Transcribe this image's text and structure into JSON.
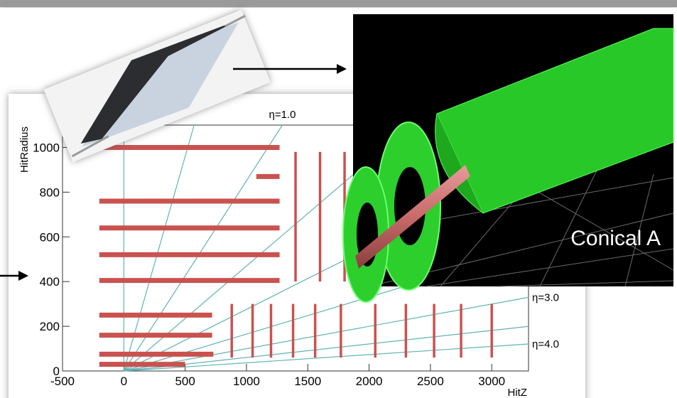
{
  "chart_data": {
    "type": "hits",
    "xlabel": "HitZ",
    "ylabel": "HitRadius",
    "xlim": [
      -500,
      3300
    ],
    "ylim": [
      0,
      1100
    ],
    "xticks": [
      -500,
      0,
      500,
      1000,
      1500,
      2000,
      2500,
      3000
    ],
    "yticks": [
      0,
      200,
      400,
      600,
      800,
      1000
    ],
    "color": "#c9524f",
    "eta_color": "#5fb3b3",
    "barrel_layers": [
      {
        "r": 1000,
        "z": [
          -200,
          1270
        ]
      },
      {
        "r": 870,
        "z": [
          1080,
          1270
        ]
      },
      {
        "r": 760,
        "z": [
          -200,
          1270
        ]
      },
      {
        "r": 640,
        "z": [
          -200,
          1270
        ]
      },
      {
        "r": 520,
        "z": [
          -200,
          1270
        ]
      },
      {
        "r": 405,
        "z": [
          -200,
          1270
        ]
      },
      {
        "r": 250,
        "z": [
          -200,
          720
        ]
      },
      {
        "r": 160,
        "z": [
          -200,
          720
        ]
      },
      {
        "r": 75,
        "z": [
          -200,
          730
        ]
      },
      {
        "r": 30,
        "z": [
          -200,
          500
        ]
      }
    ],
    "endcap_disks": [
      {
        "z": 1400,
        "r": [
          400,
          980
        ]
      },
      {
        "z": 1600,
        "r": [
          400,
          980
        ]
      },
      {
        "z": 1800,
        "r": [
          400,
          980
        ]
      },
      {
        "z": 880,
        "r": [
          60,
          300
        ]
      },
      {
        "z": 1050,
        "r": [
          60,
          300
        ]
      },
      {
        "z": 1200,
        "r": [
          60,
          300
        ]
      },
      {
        "z": 1380,
        "r": [
          60,
          300
        ]
      },
      {
        "z": 1560,
        "r": [
          60,
          300
        ]
      },
      {
        "z": 1770,
        "r": [
          60,
          300
        ]
      },
      {
        "z": 2050,
        "r": [
          60,
          300
        ]
      },
      {
        "z": 2300,
        "r": [
          60,
          300
        ]
      },
      {
        "z": 2530,
        "r": [
          60,
          300
        ]
      },
      {
        "z": 2750,
        "r": [
          60,
          300
        ]
      },
      {
        "z": 3000,
        "r": [
          60,
          300
        ]
      }
    ],
    "eta_lines": [
      0,
      0.5,
      {
        "value": 1.0,
        "label": "η=1.0"
      },
      1.5,
      2.0,
      2.5,
      {
        "value": 3.0,
        "label": "η=3.0"
      },
      3.5,
      {
        "value": 4.0,
        "label": "η=4.0"
      }
    ]
  },
  "render": {
    "caption": "Conical A"
  }
}
